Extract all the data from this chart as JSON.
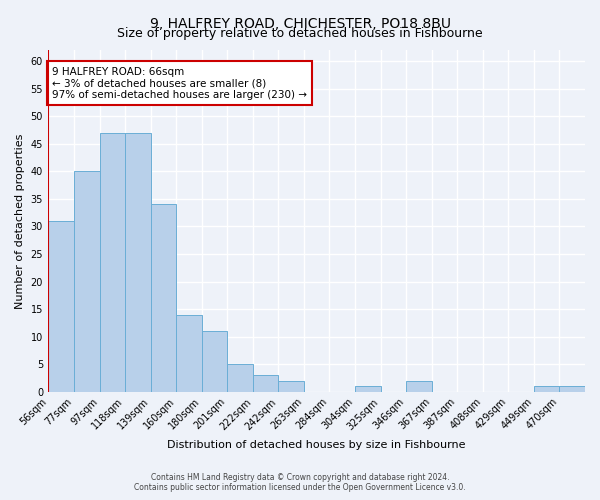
{
  "title": "9, HALFREY ROAD, CHICHESTER, PO18 8BU",
  "subtitle": "Size of property relative to detached houses in Fishbourne",
  "xlabel": "Distribution of detached houses by size in Fishbourne",
  "ylabel": "Number of detached properties",
  "bar_labels": [
    "56sqm",
    "77sqm",
    "97sqm",
    "118sqm",
    "139sqm",
    "160sqm",
    "180sqm",
    "201sqm",
    "222sqm",
    "242sqm",
    "263sqm",
    "284sqm",
    "304sqm",
    "325sqm",
    "346sqm",
    "367sqm",
    "387sqm",
    "408sqm",
    "429sqm",
    "449sqm",
    "470sqm"
  ],
  "bar_values": [
    31,
    40,
    47,
    47,
    34,
    14,
    11,
    5,
    3,
    2,
    0,
    0,
    1,
    0,
    2,
    0,
    0,
    0,
    0,
    1,
    1
  ],
  "bar_color": "#b8d0ea",
  "bar_edge_color": "#6aaed6",
  "ylim": [
    0,
    62
  ],
  "yticks": [
    0,
    5,
    10,
    15,
    20,
    25,
    30,
    35,
    40,
    45,
    50,
    55,
    60
  ],
  "annotation_text": "9 HALFREY ROAD: 66sqm\n← 3% of detached houses are smaller (8)\n97% of semi-detached houses are larger (230) →",
  "annotation_box_color": "#ffffff",
  "annotation_box_edge_color": "#cc0000",
  "red_line_color": "#cc0000",
  "footer_line1": "Contains HM Land Registry data © Crown copyright and database right 2024.",
  "footer_line2": "Contains public sector information licensed under the Open Government Licence v3.0.",
  "background_color": "#eef2f9",
  "grid_color": "#ffffff",
  "title_fontsize": 10,
  "subtitle_fontsize": 9,
  "xlabel_fontsize": 8,
  "ylabel_fontsize": 8,
  "tick_fontsize": 7,
  "footer_fontsize": 5.5,
  "annotation_fontsize": 7.5
}
